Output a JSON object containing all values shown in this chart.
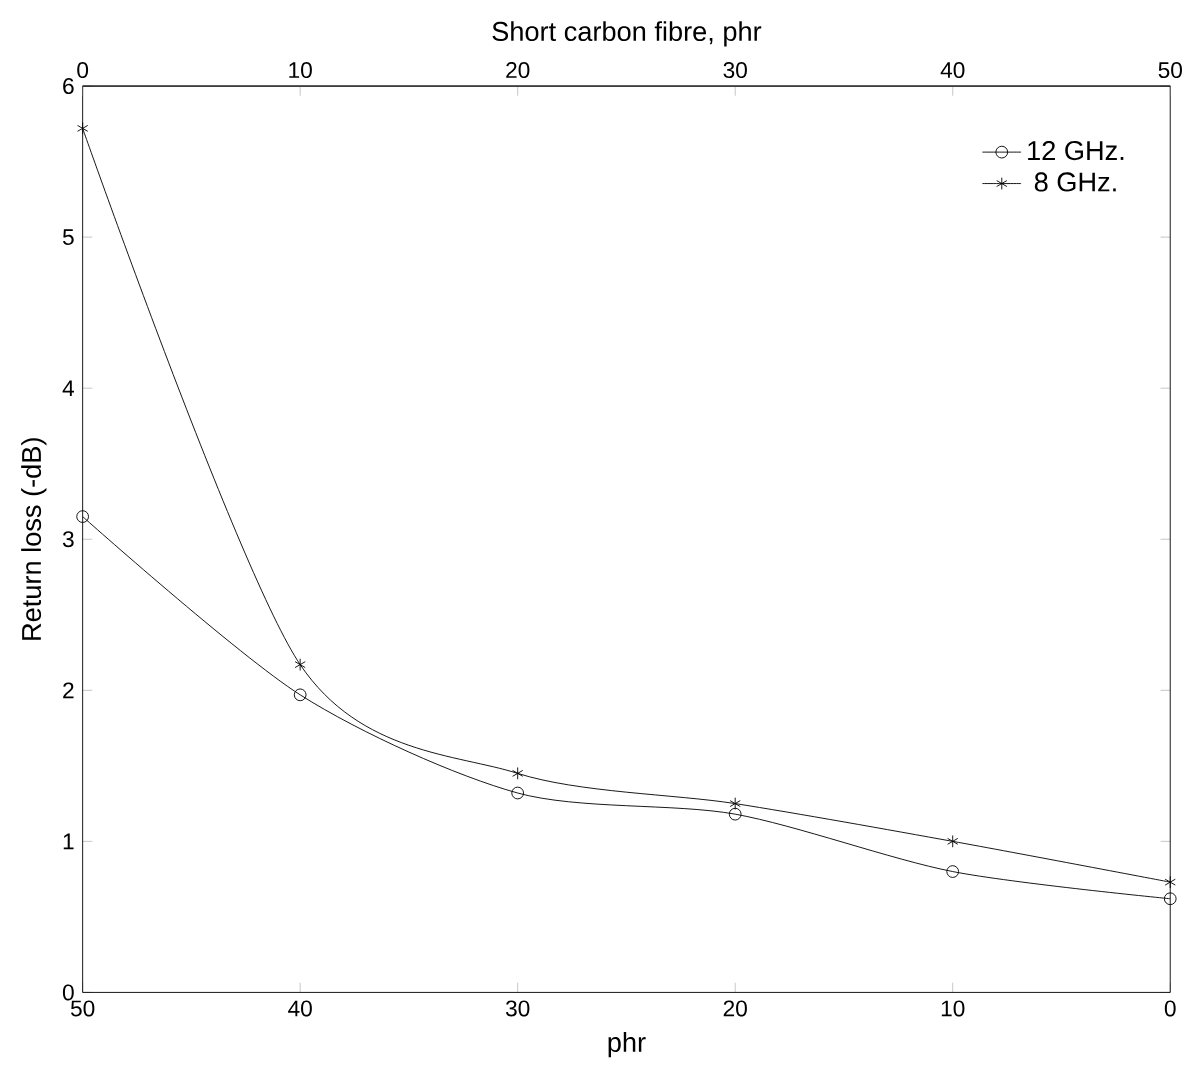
{
  "chart_data": {
    "type": "line",
    "xlabel": "phr",
    "x2label": "Short carbon fibre, phr",
    "ylabel": "Return loss (-dB)",
    "x": [
      50,
      40,
      30,
      20,
      10,
      0
    ],
    "xlim": [
      50,
      0
    ],
    "xticks": [
      50,
      40,
      30,
      20,
      10,
      0
    ],
    "x2lim": [
      0,
      50
    ],
    "x2ticks": [
      0,
      10,
      20,
      30,
      40,
      50
    ],
    "ylim": [
      0,
      6
    ],
    "yticks": [
      0,
      1,
      2,
      3,
      4,
      5,
      6
    ],
    "series": [
      {
        "name": "12 GHz.",
        "color": "#000000",
        "marker": "circle",
        "values": [
          3.15,
          1.97,
          1.32,
          1.18,
          0.8,
          0.62
        ]
      },
      {
        "name": "8 GHz.",
        "color": "#000000",
        "marker": "cross",
        "values": [
          5.72,
          2.17,
          1.45,
          1.25,
          1.0,
          0.73
        ]
      }
    ],
    "grid": false,
    "legend": "top right",
    "line_style": "solid"
  }
}
